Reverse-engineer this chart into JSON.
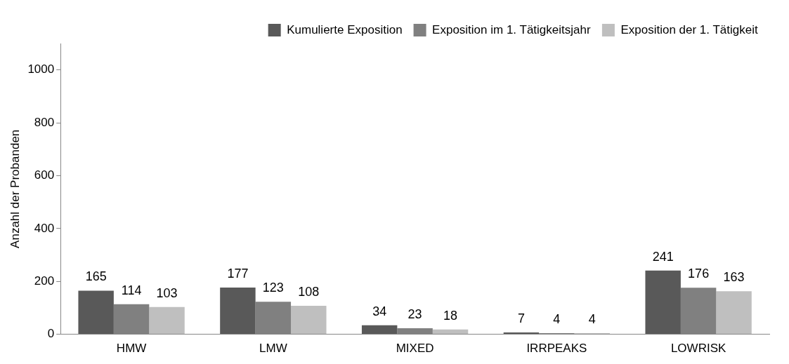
{
  "chart_data": {
    "type": "bar",
    "ylabel": "Anzahl der Probanden",
    "categories": [
      "HMW",
      "LMW",
      "MIXED",
      "IRRPEAKS",
      "LOWRISK"
    ],
    "series": [
      {
        "name": "Kumulierte Exposition",
        "color": "#595959",
        "values": [
          165,
          177,
          34,
          7,
          241
        ]
      },
      {
        "name": "Exposition im 1. Tätigkeitsjahr",
        "color": "#808080",
        "values": [
          114,
          123,
          23,
          4,
          176
        ]
      },
      {
        "name": "Exposition der 1. Tätigkeit",
        "color": "#bfbfbf",
        "values": [
          103,
          108,
          18,
          4,
          163
        ]
      }
    ],
    "ylim": [
      0,
      1100
    ],
    "yticks": [
      0,
      200,
      400,
      600,
      800,
      1000
    ],
    "grid": false,
    "legend": "top right",
    "data_labels": true
  }
}
